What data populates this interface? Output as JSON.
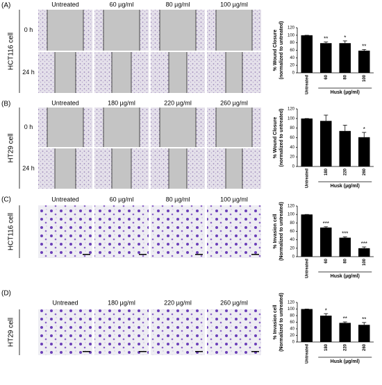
{
  "panels": [
    {
      "label": "(A)",
      "cell": "HCT116 cell",
      "rows": [
        "0 h",
        "24 h"
      ],
      "columns": [
        "Untreated",
        "60 µg/ml",
        "80 µg/ml",
        "100 µg/ml"
      ]
    },
    {
      "label": "(B)",
      "cell": "HT29 cell",
      "rows": [
        "0 h",
        "24 h"
      ],
      "columns": [
        "Untreated",
        "180 µg/ml",
        "220 µg/ml",
        "260 µg/ml"
      ]
    },
    {
      "label": "(C)",
      "cell": "HCT116 cell",
      "columns": [
        "Untreated",
        "60 µg/ml",
        "80 µg/ml",
        "100 µg/ml"
      ]
    },
    {
      "label": "(D)",
      "cell": "HT29 cell",
      "columns": [
        "Untreaed",
        "180 µg/ml",
        "220 µg/ml",
        "260 µg/ml"
      ]
    }
  ],
  "chart_data": [
    {
      "type": "bar",
      "ylabel": [
        "% Wound Closure",
        "(normalized to untreated)"
      ],
      "xlabel": "Husk (µg/ml)",
      "categories": [
        "Untreated",
        "60",
        "80",
        "100"
      ],
      "values": [
        100,
        79,
        79,
        59
      ],
      "errors": [
        0,
        3,
        6,
        3
      ],
      "annotations": [
        null,
        "**",
        "*",
        "**"
      ],
      "color": "#000000",
      "ylim": [
        0,
        120
      ],
      "yticks": [
        0,
        20,
        40,
        60,
        80,
        100,
        120
      ]
    },
    {
      "type": "bar",
      "ylabel": [
        "% Wound Closure",
        "(normalized to untreated)"
      ],
      "xlabel": "Husk (µg/ml)",
      "categories": [
        "Untreated",
        "180",
        "220",
        "260"
      ],
      "values": [
        100,
        95,
        74,
        61
      ],
      "errors": [
        0,
        12,
        12,
        10
      ],
      "annotations": [
        null,
        null,
        null,
        "*"
      ],
      "color": "#000000",
      "ylim": [
        0,
        120
      ],
      "yticks": [
        0,
        20,
        40,
        60,
        80,
        100,
        120
      ]
    },
    {
      "type": "bar",
      "ylabel": [
        "% Invasion cell",
        "(Normalized to untreated)"
      ],
      "xlabel": "Husk (µg/ml)",
      "categories": [
        "Untreated",
        "60",
        "80",
        "100"
      ],
      "values": [
        100,
        69,
        45,
        20
      ],
      "errors": [
        0,
        2,
        2,
        3
      ],
      "annotations": [
        null,
        "***",
        "***",
        "***"
      ],
      "color": "#000000",
      "ylim": [
        0,
        120
      ],
      "yticks": [
        0,
        20,
        40,
        60,
        80,
        100,
        120
      ]
    },
    {
      "type": "bar",
      "ylabel": [
        "% Invasion cell",
        "(Normalized to untreated)"
      ],
      "xlabel": "Husk (µg/ml)",
      "categories": [
        "Untreated",
        "180",
        "220",
        "260"
      ],
      "values": [
        100,
        80,
        58,
        52
      ],
      "errors": [
        0,
        6,
        3,
        7
      ],
      "annotations": [
        null,
        "*",
        "**",
        "**"
      ],
      "color": "#000000",
      "ylim": [
        0,
        120
      ],
      "yticks": [
        0,
        20,
        40,
        60,
        80,
        100,
        120
      ]
    }
  ]
}
